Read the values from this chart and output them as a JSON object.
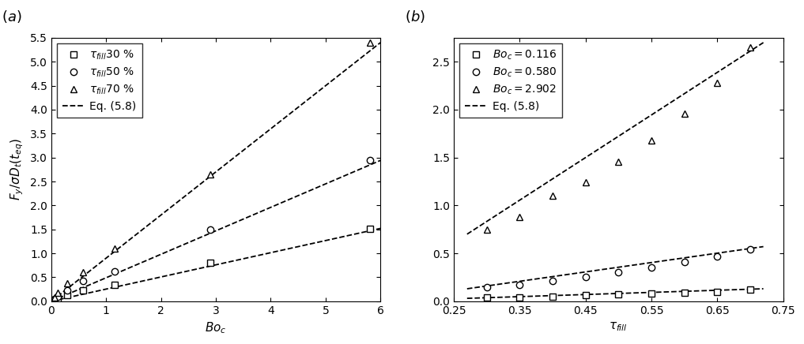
{
  "panel_a": {
    "label": "$(a)$",
    "xlabel": "$Bo_c$",
    "ylabel": "$F_y/\\sigma D_t(t_{eq})$",
    "xlim": [
      0,
      6
    ],
    "ylim": [
      0,
      5.5
    ],
    "yticks": [
      0.0,
      0.5,
      1.0,
      1.5,
      2.0,
      2.5,
      3.0,
      3.5,
      4.0,
      4.5,
      5.0,
      5.5
    ],
    "xticks": [
      0,
      1,
      2,
      3,
      4,
      5,
      6
    ],
    "series": [
      {
        "label": "$\\tau_{fill}$30 %",
        "marker": "s",
        "x": [
          0.058,
          0.116,
          0.29,
          0.58,
          1.16,
          2.902,
          5.804
        ],
        "y": [
          0.03,
          0.05,
          0.12,
          0.22,
          0.34,
          0.8,
          1.52
        ]
      },
      {
        "label": "$\\tau_{fill}$50 %",
        "marker": "o",
        "x": [
          0.058,
          0.116,
          0.29,
          0.58,
          1.16,
          2.902,
          5.804
        ],
        "y": [
          0.05,
          0.1,
          0.22,
          0.42,
          0.62,
          1.5,
          2.94
        ]
      },
      {
        "label": "$\\tau_{fill}$70 %",
        "marker": "^",
        "x": [
          0.058,
          0.116,
          0.29,
          0.58,
          1.16,
          2.902,
          5.804
        ],
        "y": [
          0.08,
          0.18,
          0.38,
          0.6,
          1.1,
          2.65,
          5.4
        ]
      }
    ],
    "fit_lines": [
      {
        "x": [
          0,
          6
        ],
        "y": [
          0,
          1.52
        ]
      },
      {
        "x": [
          0,
          6
        ],
        "y": [
          0,
          2.94
        ]
      },
      {
        "x": [
          0,
          6
        ],
        "y": [
          0,
          5.4
        ]
      }
    ],
    "legend_eq": "Eq. (5.8)"
  },
  "panel_b": {
    "label": "$(b)$",
    "xlabel": "$\\tau_{fill}$",
    "ylabel": "",
    "xlim": [
      0.25,
      0.75
    ],
    "ylim": [
      0,
      2.75
    ],
    "yticks": [
      0.0,
      0.5,
      1.0,
      1.5,
      2.0,
      2.5
    ],
    "xticks": [
      0.25,
      0.35,
      0.45,
      0.55,
      0.65,
      0.75
    ],
    "series": [
      {
        "label": "$Bo_c = 0.116$",
        "marker": "s",
        "x": [
          0.3,
          0.35,
          0.4,
          0.45,
          0.5,
          0.55,
          0.6,
          0.65,
          0.7
        ],
        "y": [
          0.04,
          0.04,
          0.05,
          0.06,
          0.07,
          0.08,
          0.09,
          0.1,
          0.12
        ]
      },
      {
        "label": "$Bo_c = 0.580$",
        "marker": "o",
        "x": [
          0.3,
          0.35,
          0.4,
          0.45,
          0.5,
          0.55,
          0.6,
          0.65,
          0.7
        ],
        "y": [
          0.15,
          0.17,
          0.21,
          0.25,
          0.3,
          0.35,
          0.41,
          0.47,
          0.54
        ]
      },
      {
        "label": "$Bo_c = 2.902$",
        "marker": "^",
        "x": [
          0.3,
          0.35,
          0.4,
          0.45,
          0.5,
          0.55,
          0.6,
          0.65,
          0.7
        ],
        "y": [
          0.75,
          0.88,
          1.1,
          1.24,
          1.46,
          1.68,
          1.96,
          2.28,
          2.65
        ]
      }
    ],
    "fit_lines": [
      {
        "x": [
          0.27,
          0.72
        ],
        "y": [
          0.03,
          0.13
        ]
      },
      {
        "x": [
          0.27,
          0.72
        ],
        "y": [
          0.13,
          0.57
        ]
      },
      {
        "x": [
          0.27,
          0.72
        ],
        "y": [
          0.7,
          2.7
        ]
      }
    ],
    "legend_eq": "Eq. (5.8)"
  },
  "marker_size": 6,
  "marker_facecolor": "white",
  "marker_edgecolor": "black",
  "line_color": "black",
  "line_style": "--",
  "line_width": 1.3,
  "marker_edgewidth": 1.0,
  "font_size": 10,
  "label_font_size": 11,
  "tick_font_size": 10
}
